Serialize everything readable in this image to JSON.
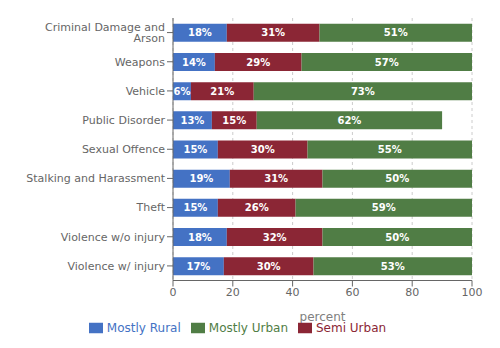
{
  "chart_data": {
    "type": "bar",
    "orientation": "horizontal",
    "stacked": true,
    "data_labels": true,
    "grid": true,
    "legend": "bottom",
    "xlabel": "percent",
    "categories": [
      "Violence w/ injury",
      "Violence w/o injury",
      "Theft",
      "Stalking and Harassment",
      "Sexual Offence",
      "Public Disorder",
      "Vehicle",
      "Weapons",
      "Criminal Damage and Arson"
    ],
    "series": [
      {
        "name": "Mostly Rural",
        "color": "#4472c4",
        "values": [
          17,
          18,
          15,
          19,
          15,
          13,
          6,
          14,
          18
        ],
        "value_labels": [
          "17%",
          "18%",
          "15%",
          "19%",
          "15%",
          "13%",
          "6%",
          "14%",
          "18%"
        ]
      },
      {
        "name": "Semi Urban",
        "color": "#8b2635",
        "values": [
          30,
          32,
          26,
          31,
          30,
          15,
          21,
          29,
          31
        ],
        "value_labels": [
          "30%",
          "32%",
          "26%",
          "31%",
          "30%",
          "15%",
          "21%",
          "29%",
          "31%"
        ]
      },
      {
        "name": "Mostly Urban",
        "color": "#507d45",
        "values": [
          53,
          50,
          59,
          50,
          55,
          62,
          73,
          57,
          51
        ],
        "value_labels": [
          "53%",
          "50%",
          "59%",
          "50%",
          "55%",
          "62%",
          "73%",
          "57%",
          "51%"
        ]
      }
    ],
    "xlim": [
      0,
      100
    ],
    "xticks": [
      0,
      20,
      40,
      60,
      80,
      100
    ]
  }
}
